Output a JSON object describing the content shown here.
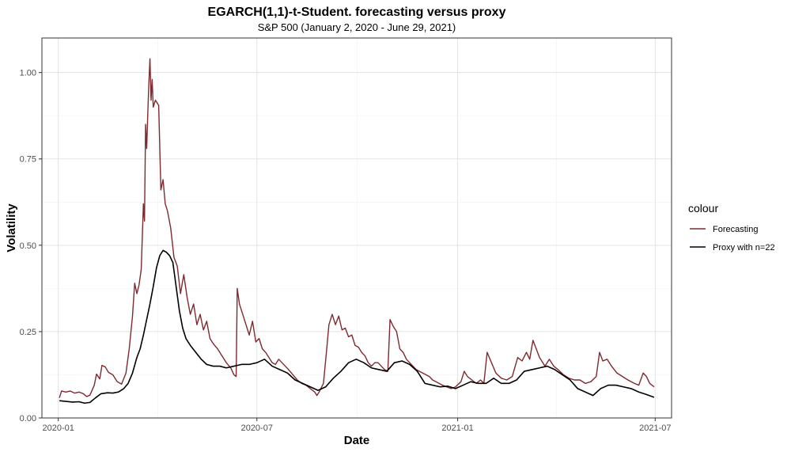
{
  "chart_data": {
    "type": "line",
    "title": "EGARCH(1,1)-t-Student. forecasting versus proxy",
    "subtitle": "S&P 500 (January 2, 2020 - June 29, 2021)",
    "xlabel": "Date",
    "ylabel": "Volatility",
    "xlim": [
      "2019-12-17",
      "2021-07-16"
    ],
    "ylim": [
      0,
      1.1
    ],
    "x_ticks": [
      {
        "value": "2020-01-01",
        "label": "2020-01"
      },
      {
        "value": "2020-07-01",
        "label": "2020-07"
      },
      {
        "value": "2021-01-01",
        "label": "2021-01"
      },
      {
        "value": "2021-07-01",
        "label": "2021-07"
      }
    ],
    "y_ticks": [
      {
        "value": 0.0,
        "label": "0.00"
      },
      {
        "value": 0.25,
        "label": "0.25"
      },
      {
        "value": 0.5,
        "label": "0.50"
      },
      {
        "value": 0.75,
        "label": "0.75"
      },
      {
        "value": 1.0,
        "label": "1.00"
      }
    ],
    "grid": true,
    "legend_title": "colour",
    "legend_position": "right",
    "series": [
      {
        "name": "Forecasting",
        "color": "#7f2a2e",
        "points": [
          [
            "2020-01-02",
            0.058
          ],
          [
            "2020-01-04",
            0.078
          ],
          [
            "2020-01-08",
            0.075
          ],
          [
            "2020-01-12",
            0.078
          ],
          [
            "2020-01-16",
            0.072
          ],
          [
            "2020-01-20",
            0.075
          ],
          [
            "2020-01-24",
            0.07
          ],
          [
            "2020-01-27",
            0.062
          ],
          [
            "2020-01-30",
            0.066
          ],
          [
            "2020-02-03",
            0.095
          ],
          [
            "2020-02-05",
            0.127
          ],
          [
            "2020-02-08",
            0.113
          ],
          [
            "2020-02-10",
            0.152
          ],
          [
            "2020-02-13",
            0.148
          ],
          [
            "2020-02-16",
            0.132
          ],
          [
            "2020-02-20",
            0.125
          ],
          [
            "2020-02-24",
            0.105
          ],
          [
            "2020-02-28",
            0.098
          ],
          [
            "2020-03-03",
            0.13
          ],
          [
            "2020-03-06",
            0.2
          ],
          [
            "2020-03-09",
            0.295
          ],
          [
            "2020-03-11",
            0.39
          ],
          [
            "2020-03-13",
            0.36
          ],
          [
            "2020-03-15",
            0.385
          ],
          [
            "2020-03-17",
            0.43
          ],
          [
            "2020-03-19",
            0.62
          ],
          [
            "2020-03-20",
            0.57
          ],
          [
            "2020-03-21",
            0.85
          ],
          [
            "2020-03-22",
            0.78
          ],
          [
            "2020-03-23",
            0.88
          ],
          [
            "2020-03-24",
            0.97
          ],
          [
            "2020-03-25",
            1.04
          ],
          [
            "2020-03-26",
            0.92
          ],
          [
            "2020-03-27",
            0.98
          ],
          [
            "2020-03-28",
            0.9
          ],
          [
            "2020-03-30",
            0.92
          ],
          [
            "2020-04-02",
            0.905
          ],
          [
            "2020-04-04",
            0.66
          ],
          [
            "2020-04-06",
            0.69
          ],
          [
            "2020-04-08",
            0.62
          ],
          [
            "2020-04-10",
            0.6
          ],
          [
            "2020-04-13",
            0.55
          ],
          [
            "2020-04-16",
            0.465
          ],
          [
            "2020-04-19",
            0.44
          ],
          [
            "2020-04-22",
            0.36
          ],
          [
            "2020-04-25",
            0.415
          ],
          [
            "2020-04-28",
            0.35
          ],
          [
            "2020-05-01",
            0.3
          ],
          [
            "2020-05-04",
            0.33
          ],
          [
            "2020-05-07",
            0.27
          ],
          [
            "2020-05-10",
            0.3
          ],
          [
            "2020-05-13",
            0.255
          ],
          [
            "2020-05-16",
            0.28
          ],
          [
            "2020-05-19",
            0.23
          ],
          [
            "2020-05-22",
            0.215
          ],
          [
            "2020-05-26",
            0.2
          ],
          [
            "2020-05-30",
            0.18
          ],
          [
            "2020-06-03",
            0.16
          ],
          [
            "2020-06-07",
            0.145
          ],
          [
            "2020-06-10",
            0.125
          ],
          [
            "2020-06-12",
            0.12
          ],
          [
            "2020-06-13",
            0.375
          ],
          [
            "2020-06-15",
            0.33
          ],
          [
            "2020-06-18",
            0.3
          ],
          [
            "2020-06-21",
            0.27
          ],
          [
            "2020-06-24",
            0.24
          ],
          [
            "2020-06-27",
            0.28
          ],
          [
            "2020-06-30",
            0.22
          ],
          [
            "2020-07-03",
            0.23
          ],
          [
            "2020-07-06",
            0.2
          ],
          [
            "2020-07-09",
            0.19
          ],
          [
            "2020-07-12",
            0.175
          ],
          [
            "2020-07-15",
            0.16
          ],
          [
            "2020-07-18",
            0.155
          ],
          [
            "2020-07-21",
            0.17
          ],
          [
            "2020-07-24",
            0.16
          ],
          [
            "2020-07-27",
            0.15
          ],
          [
            "2020-07-30",
            0.14
          ],
          [
            "2020-08-03",
            0.125
          ],
          [
            "2020-08-07",
            0.11
          ],
          [
            "2020-08-11",
            0.1
          ],
          [
            "2020-08-15",
            0.095
          ],
          [
            "2020-08-19",
            0.085
          ],
          [
            "2020-08-23",
            0.075
          ],
          [
            "2020-08-25",
            0.065
          ],
          [
            "2020-08-27",
            0.075
          ],
          [
            "2020-08-31",
            0.1
          ],
          [
            "2020-09-03",
            0.2
          ],
          [
            "2020-09-05",
            0.27
          ],
          [
            "2020-09-08",
            0.3
          ],
          [
            "2020-09-11",
            0.27
          ],
          [
            "2020-09-14",
            0.295
          ],
          [
            "2020-09-17",
            0.255
          ],
          [
            "2020-09-20",
            0.26
          ],
          [
            "2020-09-23",
            0.235
          ],
          [
            "2020-09-26",
            0.24
          ],
          [
            "2020-09-29",
            0.21
          ],
          [
            "2020-10-02",
            0.205
          ],
          [
            "2020-10-05",
            0.19
          ],
          [
            "2020-10-08",
            0.18
          ],
          [
            "2020-10-11",
            0.16
          ],
          [
            "2020-10-14",
            0.15
          ],
          [
            "2020-10-17",
            0.16
          ],
          [
            "2020-10-20",
            0.16
          ],
          [
            "2020-10-23",
            0.15
          ],
          [
            "2020-10-26",
            0.14
          ],
          [
            "2020-10-29",
            0.135
          ],
          [
            "2020-10-31",
            0.285
          ],
          [
            "2020-11-03",
            0.265
          ],
          [
            "2020-11-06",
            0.25
          ],
          [
            "2020-11-09",
            0.2
          ],
          [
            "2020-11-12",
            0.19
          ],
          [
            "2020-11-15",
            0.17
          ],
          [
            "2020-11-18",
            0.16
          ],
          [
            "2020-11-21",
            0.15
          ],
          [
            "2020-11-24",
            0.14
          ],
          [
            "2020-11-27",
            0.135
          ],
          [
            "2020-11-30",
            0.13
          ],
          [
            "2020-12-03",
            0.125
          ],
          [
            "2020-12-06",
            0.12
          ],
          [
            "2020-12-09",
            0.11
          ],
          [
            "2020-12-12",
            0.105
          ],
          [
            "2020-12-15",
            0.1
          ],
          [
            "2020-12-18",
            0.095
          ],
          [
            "2020-12-22",
            0.09
          ],
          [
            "2020-12-26",
            0.085
          ],
          [
            "2020-12-30",
            0.09
          ],
          [
            "2021-01-04",
            0.105
          ],
          [
            "2021-01-07",
            0.135
          ],
          [
            "2021-01-10",
            0.12
          ],
          [
            "2021-01-14",
            0.11
          ],
          [
            "2021-01-18",
            0.1
          ],
          [
            "2021-01-22",
            0.11
          ],
          [
            "2021-01-25",
            0.1
          ],
          [
            "2021-01-28",
            0.19
          ],
          [
            "2021-02-01",
            0.16
          ],
          [
            "2021-02-05",
            0.13
          ],
          [
            "2021-02-10",
            0.115
          ],
          [
            "2021-02-15",
            0.11
          ],
          [
            "2021-02-20",
            0.12
          ],
          [
            "2021-02-25",
            0.175
          ],
          [
            "2021-03-01",
            0.165
          ],
          [
            "2021-03-05",
            0.19
          ],
          [
            "2021-03-08",
            0.17
          ],
          [
            "2021-03-11",
            0.225
          ],
          [
            "2021-03-14",
            0.2
          ],
          [
            "2021-03-17",
            0.175
          ],
          [
            "2021-03-22",
            0.15
          ],
          [
            "2021-03-26",
            0.17
          ],
          [
            "2021-03-30",
            0.15
          ],
          [
            "2021-04-03",
            0.14
          ],
          [
            "2021-04-08",
            0.125
          ],
          [
            "2021-04-13",
            0.115
          ],
          [
            "2021-04-18",
            0.11
          ],
          [
            "2021-04-23",
            0.11
          ],
          [
            "2021-04-28",
            0.1
          ],
          [
            "2021-05-03",
            0.105
          ],
          [
            "2021-05-08",
            0.12
          ],
          [
            "2021-05-11",
            0.19
          ],
          [
            "2021-05-14",
            0.165
          ],
          [
            "2021-05-18",
            0.17
          ],
          [
            "2021-05-22",
            0.15
          ],
          [
            "2021-05-27",
            0.13
          ],
          [
            "2021-06-01",
            0.12
          ],
          [
            "2021-06-06",
            0.11
          ],
          [
            "2021-06-12",
            0.1
          ],
          [
            "2021-06-16",
            0.095
          ],
          [
            "2021-06-20",
            0.13
          ],
          [
            "2021-06-23",
            0.12
          ],
          [
            "2021-06-26",
            0.1
          ],
          [
            "2021-06-30",
            0.09
          ]
        ]
      },
      {
        "name": "Proxy with n=22",
        "color": "#000000",
        "points": [
          [
            "2020-01-02",
            0.05
          ],
          [
            "2020-01-08",
            0.048
          ],
          [
            "2020-01-14",
            0.046
          ],
          [
            "2020-01-20",
            0.047
          ],
          [
            "2020-01-25",
            0.043
          ],
          [
            "2020-01-30",
            0.045
          ],
          [
            "2020-02-04",
            0.058
          ],
          [
            "2020-02-09",
            0.07
          ],
          [
            "2020-02-15",
            0.073
          ],
          [
            "2020-02-20",
            0.072
          ],
          [
            "2020-02-25",
            0.075
          ],
          [
            "2020-03-01",
            0.085
          ],
          [
            "2020-03-05",
            0.1
          ],
          [
            "2020-03-09",
            0.13
          ],
          [
            "2020-03-13",
            0.175
          ],
          [
            "2020-03-16",
            0.2
          ],
          [
            "2020-03-19",
            0.24
          ],
          [
            "2020-03-22",
            0.285
          ],
          [
            "2020-03-25",
            0.33
          ],
          [
            "2020-03-28",
            0.38
          ],
          [
            "2020-03-31",
            0.435
          ],
          [
            "2020-04-03",
            0.47
          ],
          [
            "2020-04-06",
            0.485
          ],
          [
            "2020-04-09",
            0.48
          ],
          [
            "2020-04-12",
            0.47
          ],
          [
            "2020-04-15",
            0.45
          ],
          [
            "2020-04-18",
            0.38
          ],
          [
            "2020-04-21",
            0.31
          ],
          [
            "2020-04-24",
            0.26
          ],
          [
            "2020-04-27",
            0.23
          ],
          [
            "2020-05-01",
            0.21
          ],
          [
            "2020-05-06",
            0.19
          ],
          [
            "2020-05-11",
            0.17
          ],
          [
            "2020-05-16",
            0.155
          ],
          [
            "2020-05-22",
            0.15
          ],
          [
            "2020-05-28",
            0.15
          ],
          [
            "2020-06-03",
            0.145
          ],
          [
            "2020-06-10",
            0.15
          ],
          [
            "2020-06-17",
            0.155
          ],
          [
            "2020-06-24",
            0.155
          ],
          [
            "2020-07-01",
            0.16
          ],
          [
            "2020-07-08",
            0.17
          ],
          [
            "2020-07-15",
            0.15
          ],
          [
            "2020-07-22",
            0.14
          ],
          [
            "2020-07-29",
            0.13
          ],
          [
            "2020-08-05",
            0.11
          ],
          [
            "2020-08-12",
            0.1
          ],
          [
            "2020-08-19",
            0.09
          ],
          [
            "2020-08-26",
            0.08
          ],
          [
            "2020-09-02",
            0.09
          ],
          [
            "2020-09-09",
            0.115
          ],
          [
            "2020-09-16",
            0.135
          ],
          [
            "2020-09-23",
            0.16
          ],
          [
            "2020-09-30",
            0.17
          ],
          [
            "2020-10-07",
            0.16
          ],
          [
            "2020-10-14",
            0.145
          ],
          [
            "2020-10-21",
            0.14
          ],
          [
            "2020-10-28",
            0.135
          ],
          [
            "2020-11-04",
            0.16
          ],
          [
            "2020-11-11",
            0.165
          ],
          [
            "2020-11-18",
            0.155
          ],
          [
            "2020-11-25",
            0.135
          ],
          [
            "2020-12-02",
            0.1
          ],
          [
            "2020-12-09",
            0.095
          ],
          [
            "2020-12-16",
            0.09
          ],
          [
            "2020-12-23",
            0.092
          ],
          [
            "2020-12-30",
            0.085
          ],
          [
            "2021-01-06",
            0.095
          ],
          [
            "2021-01-13",
            0.105
          ],
          [
            "2021-01-20",
            0.1
          ],
          [
            "2021-01-27",
            0.1
          ],
          [
            "2021-02-03",
            0.115
          ],
          [
            "2021-02-10",
            0.1
          ],
          [
            "2021-02-17",
            0.1
          ],
          [
            "2021-02-24",
            0.11
          ],
          [
            "2021-03-03",
            0.135
          ],
          [
            "2021-03-10",
            0.14
          ],
          [
            "2021-03-17",
            0.145
          ],
          [
            "2021-03-24",
            0.15
          ],
          [
            "2021-03-31",
            0.14
          ],
          [
            "2021-04-07",
            0.125
          ],
          [
            "2021-04-14",
            0.11
          ],
          [
            "2021-04-21",
            0.085
          ],
          [
            "2021-04-28",
            0.075
          ],
          [
            "2021-05-05",
            0.065
          ],
          [
            "2021-05-12",
            0.085
          ],
          [
            "2021-05-19",
            0.095
          ],
          [
            "2021-05-26",
            0.095
          ],
          [
            "2021-06-02",
            0.09
          ],
          [
            "2021-06-09",
            0.085
          ],
          [
            "2021-06-16",
            0.075
          ],
          [
            "2021-06-23",
            0.068
          ],
          [
            "2021-06-30",
            0.06
          ]
        ]
      }
    ]
  }
}
